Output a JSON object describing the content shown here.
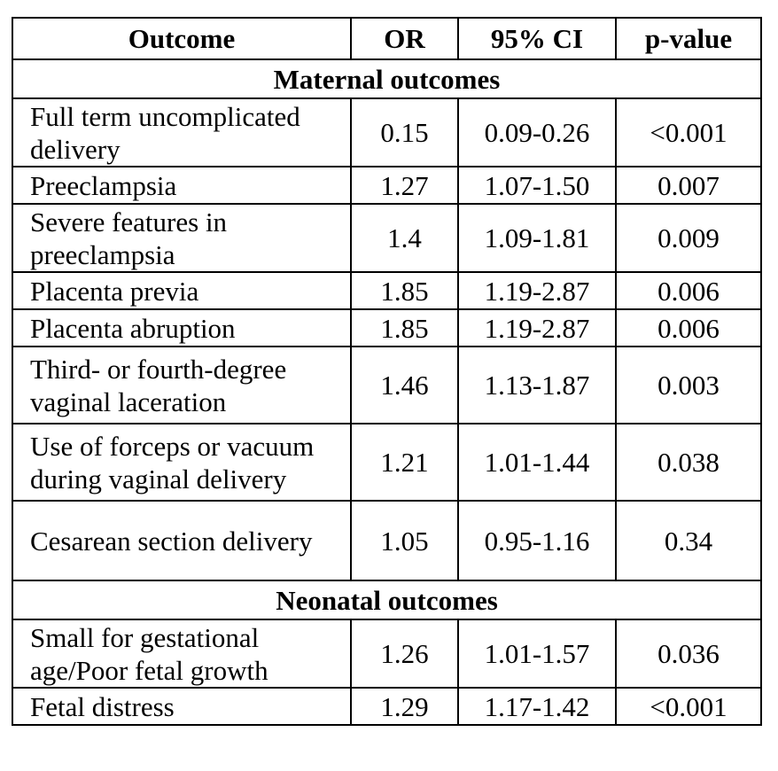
{
  "table": {
    "headers": {
      "outcome": "Outcome",
      "or": "OR",
      "ci": "95% CI",
      "p": "p-value"
    },
    "sections": [
      {
        "title": "Maternal outcomes",
        "rows": [
          {
            "outcome": "Full term uncomplicated delivery",
            "or": "0.15",
            "ci": "0.09-0.26",
            "p": "<0.001"
          },
          {
            "outcome": "Preeclampsia",
            "or": "1.27",
            "ci": "1.07-1.50",
            "p": "0.007"
          },
          {
            "outcome": "Severe features in preeclampsia",
            "or": "1.4",
            "ci": "1.09-1.81",
            "p": "0.009"
          },
          {
            "outcome": "Placenta previa",
            "or": "1.85",
            "ci": "1.19-2.87",
            "p": "0.006"
          },
          {
            "outcome": "Placenta abruption",
            "or": "1.85",
            "ci": "1.19-2.87",
            "p": "0.006"
          },
          {
            "outcome": "Third- or fourth-degree vaginal laceration",
            "or": "1.46",
            "ci": "1.13-1.87",
            "p": "0.003"
          },
          {
            "outcome": "Use of forceps or vacuum during vaginal delivery",
            "or": "1.21",
            "ci": "1.01-1.44",
            "p": "0.038"
          },
          {
            "outcome": "Cesarean section delivery",
            "or": "1.05",
            "ci": "0.95-1.16",
            "p": "0.34"
          }
        ]
      },
      {
        "title": "Neonatal outcomes",
        "rows": [
          {
            "outcome": "Small for gestational age/Poor fetal growth",
            "or": "1.26",
            "ci": "1.01-1.57",
            "p": "0.036"
          },
          {
            "outcome": "Fetal distress",
            "or": "1.29",
            "ci": "1.17-1.42",
            "p": "<0.001"
          }
        ]
      }
    ]
  }
}
